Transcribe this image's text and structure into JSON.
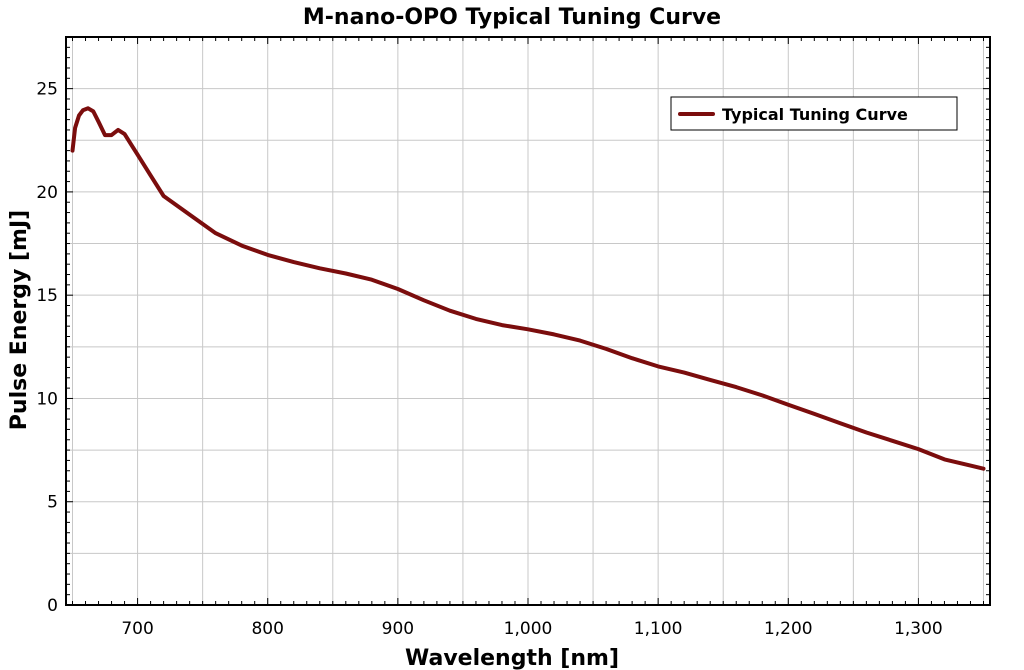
{
  "chart_data": {
    "type": "line",
    "title": "M-nano-OPO Typical Tuning Curve",
    "xlabel": "Wavelength [nm]",
    "ylabel": "Pulse Energy [mJ]",
    "xlim": [
      645,
      1355
    ],
    "ylim": [
      0,
      27.5
    ],
    "x_ticks": [
      700,
      800,
      900,
      1000,
      1100,
      1200,
      1300
    ],
    "x_tick_labels": [
      "700",
      "800",
      "900",
      "1,000",
      "1,100",
      "1,200",
      "1,300"
    ],
    "y_ticks": [
      0,
      5,
      10,
      15,
      20,
      25
    ],
    "y_tick_labels": [
      "0",
      "5",
      "10",
      "15",
      "20",
      "25"
    ],
    "grid": true,
    "legend_position": "top-right",
    "colors": {
      "series": "#7b0d0d",
      "grid": "#c8c8c8",
      "axis": "#000000"
    },
    "series": [
      {
        "name": "Typical Tuning Curve",
        "x": [
          650,
          652,
          655,
          658,
          662,
          666,
          670,
          675,
          680,
          685,
          690,
          695,
          700,
          710,
          720,
          740,
          760,
          780,
          800,
          820,
          840,
          860,
          880,
          900,
          920,
          940,
          960,
          980,
          1000,
          1020,
          1040,
          1060,
          1080,
          1100,
          1120,
          1140,
          1160,
          1180,
          1200,
          1220,
          1240,
          1260,
          1280,
          1300,
          1320,
          1340,
          1350
        ],
        "y": [
          22.0,
          23.1,
          23.7,
          23.95,
          24.05,
          23.9,
          23.4,
          22.75,
          22.75,
          23.0,
          22.8,
          22.3,
          21.8,
          20.8,
          19.8,
          18.9,
          18.0,
          17.4,
          16.95,
          16.6,
          16.3,
          16.05,
          15.75,
          15.3,
          14.75,
          14.25,
          13.85,
          13.55,
          13.35,
          13.1,
          12.8,
          12.4,
          11.95,
          11.55,
          11.25,
          10.9,
          10.55,
          10.15,
          9.7,
          9.25,
          8.8,
          8.35,
          7.95,
          7.55,
          7.05,
          6.75,
          6.6
        ]
      }
    ]
  }
}
